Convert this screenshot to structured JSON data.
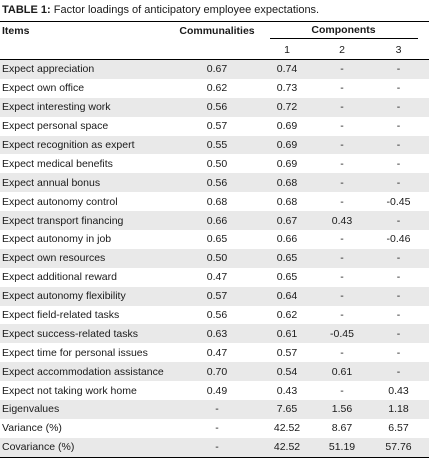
{
  "caption": {
    "label": "TABLE 1:",
    "text": " Factor loadings of anticipatory employee expectations."
  },
  "headers": {
    "items": "Items",
    "communalities": "Communalities",
    "components": "Components",
    "component_numbers": [
      "1",
      "2",
      "3"
    ]
  },
  "rows": [
    {
      "item": "Expect appreciation",
      "comm": "0.67",
      "c1": "0.74",
      "c2": "-",
      "c3": "-"
    },
    {
      "item": "Expect own office",
      "comm": "0.62",
      "c1": "0.73",
      "c2": "-",
      "c3": "-"
    },
    {
      "item": "Expect interesting work",
      "comm": "0.56",
      "c1": "0.72",
      "c2": "-",
      "c3": "-"
    },
    {
      "item": "Expect personal space",
      "comm": "0.57",
      "c1": "0.69",
      "c2": "-",
      "c3": "-"
    },
    {
      "item": "Expect recognition as expert",
      "comm": "0.55",
      "c1": "0.69",
      "c2": "-",
      "c3": "-"
    },
    {
      "item": "Expect medical benefits",
      "comm": "0.50",
      "c1": "0.69",
      "c2": "-",
      "c3": "-"
    },
    {
      "item": "Expect annual bonus",
      "comm": "0.56",
      "c1": "0.68",
      "c2": "-",
      "c3": "-"
    },
    {
      "item": "Expect autonomy control",
      "comm": "0.68",
      "c1": "0.68",
      "c2": "-",
      "c3": "-0.45"
    },
    {
      "item": "Expect transport financing",
      "comm": "0.66",
      "c1": "0.67",
      "c2": "0.43",
      "c3": "-"
    },
    {
      "item": "Expect autonomy in job",
      "comm": "0.65",
      "c1": "0.66",
      "c2": "-",
      "c3": "-0.46"
    },
    {
      "item": "Expect own resources",
      "comm": "0.50",
      "c1": "0.65",
      "c2": "-",
      "c3": "-"
    },
    {
      "item": "Expect additional reward",
      "comm": "0.47",
      "c1": "0.65",
      "c2": "-",
      "c3": "-"
    },
    {
      "item": "Expect autonomy flexibility",
      "comm": "0.57",
      "c1": "0.64",
      "c2": "-",
      "c3": "-"
    },
    {
      "item": "Expect field-related tasks",
      "comm": "0.56",
      "c1": "0.62",
      "c2": "-",
      "c3": "-"
    },
    {
      "item": "Expect success-related tasks",
      "comm": "0.63",
      "c1": "0.61",
      "c2": "-0.45",
      "c3": "-"
    },
    {
      "item": "Expect time for personal issues",
      "comm": "0.47",
      "c1": "0.57",
      "c2": "-",
      "c3": "-"
    },
    {
      "item": "Expect accommodation assistance",
      "comm": "0.70",
      "c1": "0.54",
      "c2": "0.61",
      "c3": "-"
    },
    {
      "item": "Expect not taking work home",
      "comm": "0.49",
      "c1": "0.43",
      "c2": "-",
      "c3": "0.43"
    },
    {
      "item": "Eigenvalues",
      "comm": "-",
      "c1": "7.65",
      "c2": "1.56",
      "c3": "1.18"
    },
    {
      "item": "Variance (%)",
      "comm": "-",
      "c1": "42.52",
      "c2": "8.67",
      "c3": "6.57"
    },
    {
      "item": "Covariance (%)",
      "comm": "-",
      "c1": "42.52",
      "c2": "51.19",
      "c3": "57.76"
    }
  ],
  "colors": {
    "shade": "#e9e9e9",
    "rule": "#000000"
  }
}
